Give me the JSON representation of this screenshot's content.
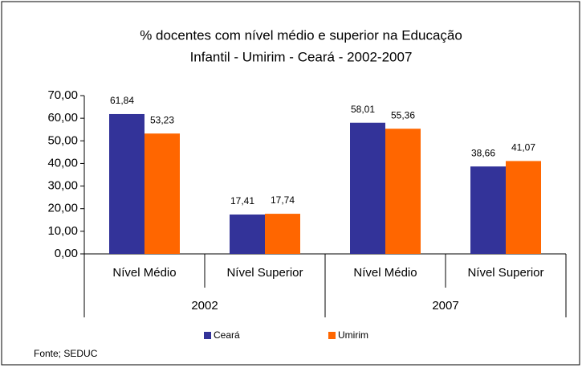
{
  "chart_data": {
    "type": "bar",
    "title": [
      "% docentes com nível médio e superior na  Educação",
      "Infantil - Umirim - Ceará - 2002-2007"
    ],
    "categories": [
      "Nível Médio",
      "Nível Superior",
      "Nível Médio",
      "Nível Superior"
    ],
    "groups": [
      "2002",
      "2007"
    ],
    "series": [
      {
        "name": "Ceará",
        "color": "#333399",
        "values": [
          61.84,
          17.41,
          58.01,
          38.66
        ],
        "value_labels": [
          "61,84",
          "17,41",
          "58,01",
          "38,66"
        ]
      },
      {
        "name": "Umirim",
        "color": "#ff6600",
        "values": [
          53.23,
          17.74,
          55.36,
          41.07
        ],
        "value_labels": [
          "53,23",
          "17,74",
          "55,36",
          "41,07"
        ]
      }
    ],
    "ylim": [
      0,
      70
    ],
    "yticks": [
      {
        "value": 0,
        "label": "0,00"
      },
      {
        "value": 10,
        "label": "10,00"
      },
      {
        "value": 20,
        "label": "20,00"
      },
      {
        "value": 30,
        "label": "30,00"
      },
      {
        "value": 40,
        "label": "40,00"
      },
      {
        "value": 50,
        "label": "50,00"
      },
      {
        "value": 60,
        "label": "60,00"
      },
      {
        "value": 70,
        "label": "70,00"
      }
    ],
    "legend": "bottom",
    "source": "Fonte; SEDUC"
  }
}
